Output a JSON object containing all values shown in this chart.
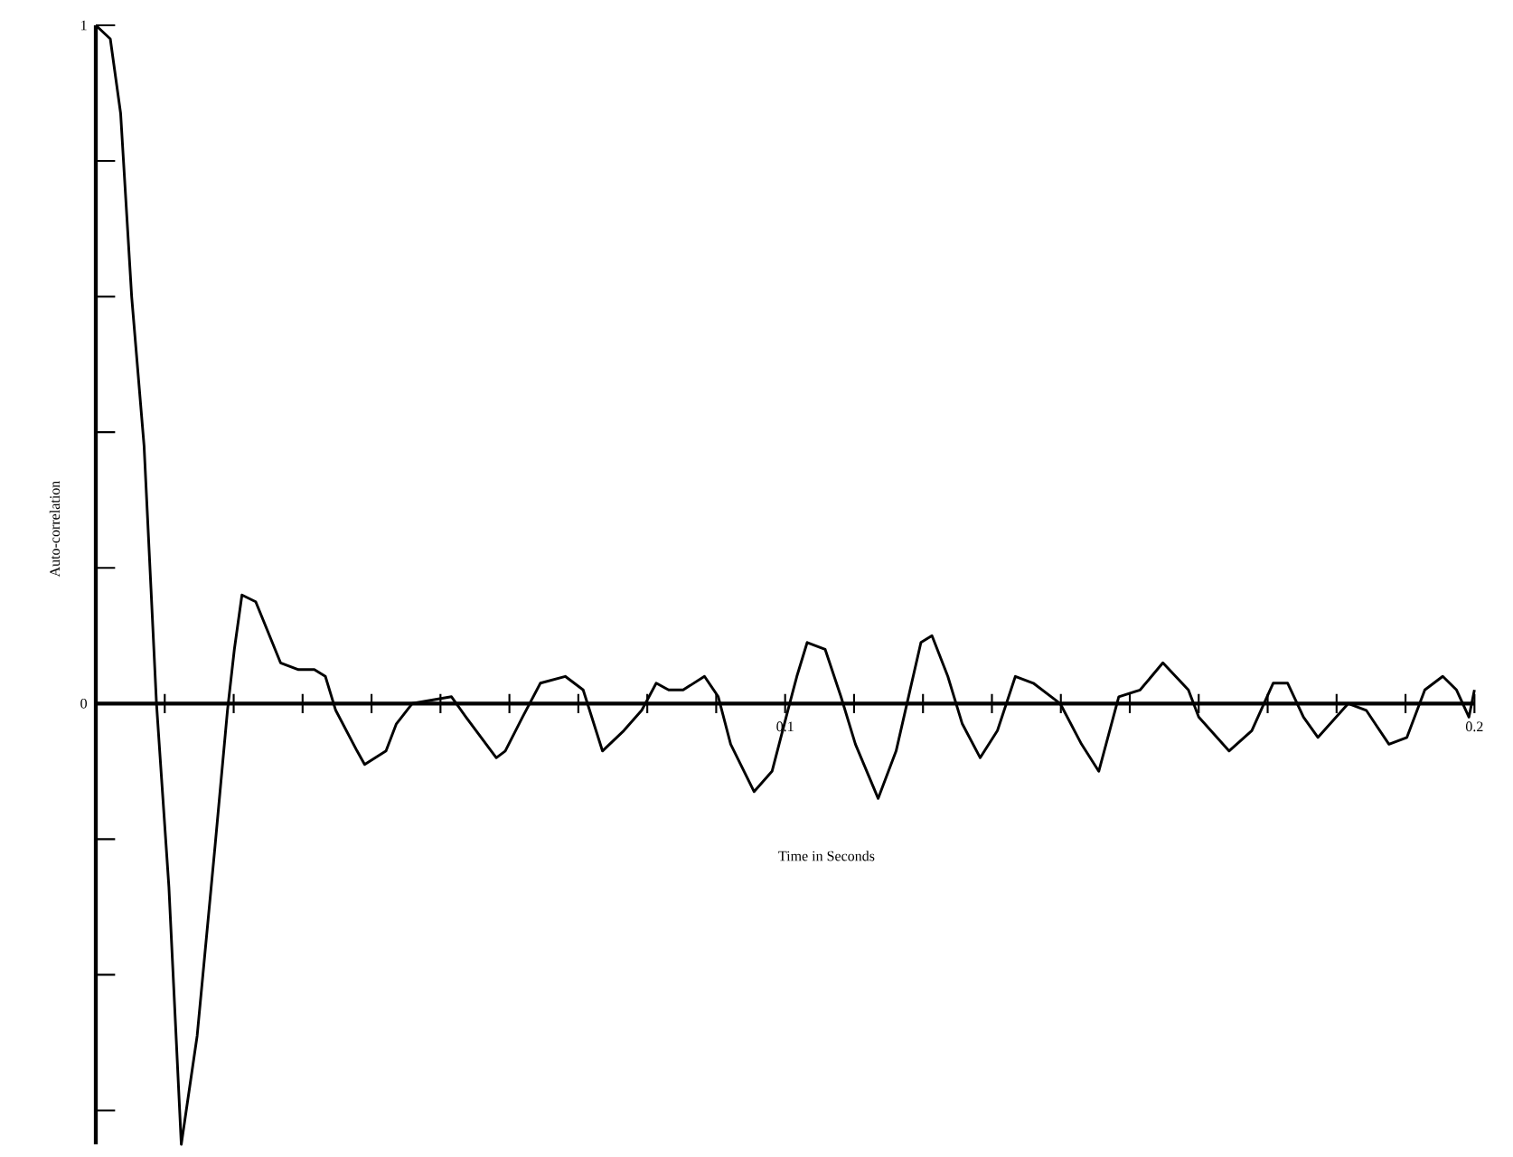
{
  "chart_data": {
    "type": "line",
    "xlabel": "Time in Seconds",
    "ylabel": "Auto-correlation",
    "color": "#000000",
    "x": [
      0,
      0.0021,
      0.0036,
      0.0052,
      0.007,
      0.008,
      0.0088,
      0.0106,
      0.0124,
      0.0147,
      0.0173,
      0.0191,
      0.0201,
      0.0212,
      0.0232,
      0.0248,
      0.0268,
      0.0294,
      0.0317,
      0.0333,
      0.0348,
      0.0379,
      0.039,
      0.0421,
      0.0436,
      0.0459,
      0.0516,
      0.0537,
      0.0581,
      0.0594,
      0.0619,
      0.0645,
      0.0681,
      0.0707,
      0.0735,
      0.0766,
      0.0792,
      0.0813,
      0.0831,
      0.0852,
      0.0883,
      0.0903,
      0.0921,
      0.0955,
      0.0981,
      0.1004,
      0.1017,
      0.1032,
      0.1058,
      0.1081,
      0.1102,
      0.1135,
      0.1161,
      0.1179,
      0.1197,
      0.1213,
      0.1236,
      0.1257,
      0.1283,
      0.1308,
      0.1334,
      0.136,
      0.1399,
      0.143,
      0.1455,
      0.1484,
      0.1515,
      0.1548,
      0.1585,
      0.16,
      0.1644,
      0.1677,
      0.1708,
      0.1729,
      0.1752,
      0.1773,
      0.1817,
      0.1843,
      0.1876,
      0.1902,
      0.1928,
      0.1954,
      0.1974,
      0.1992,
      0.2
    ],
    "values": [
      1.0,
      0.98,
      0.87,
      0.6,
      0.38,
      0.17,
      0.0,
      -0.27,
      -0.65,
      -0.49,
      -0.21,
      -0.01,
      0.08,
      0.16,
      0.15,
      0.11,
      0.06,
      0.05,
      0.05,
      0.04,
      -0.01,
      -0.07,
      -0.09,
      -0.07,
      -0.03,
      0.0,
      0.01,
      -0.02,
      -0.08,
      -0.07,
      -0.02,
      0.03,
      0.04,
      0.02,
      -0.07,
      -0.04,
      -0.01,
      0.03,
      0.02,
      0.02,
      0.04,
      0.01,
      -0.06,
      -0.13,
      -0.1,
      -0.01,
      0.04,
      0.09,
      0.08,
      0.01,
      -0.06,
      -0.14,
      -0.07,
      0.01,
      0.09,
      0.1,
      0.04,
      -0.03,
      -0.08,
      -0.04,
      0.04,
      0.03,
      0.0,
      -0.06,
      -0.1,
      0.01,
      0.02,
      0.06,
      0.02,
      -0.02,
      -0.07,
      -0.04,
      0.03,
      0.03,
      -0.02,
      -0.05,
      0.0,
      -0.01,
      -0.06,
      -0.05,
      0.02,
      0.04,
      0.02,
      -0.02,
      0.02
    ],
    "xlim": [
      0,
      0.2
    ],
    "ylim": [
      -0.65,
      1.0
    ],
    "xticks": [
      {
        "value": 0.01,
        "label": null
      },
      {
        "value": 0.02,
        "label": null
      },
      {
        "value": 0.03,
        "label": null
      },
      {
        "value": 0.04,
        "label": null
      },
      {
        "value": 0.05,
        "label": null
      },
      {
        "value": 0.06,
        "label": null
      },
      {
        "value": 0.07,
        "label": null
      },
      {
        "value": 0.08,
        "label": null
      },
      {
        "value": 0.09,
        "label": null
      },
      0.1,
      {
        "value": 0.11,
        "label": null
      },
      {
        "value": 0.12,
        "label": null
      },
      {
        "value": 0.13,
        "label": null
      },
      {
        "value": 0.14,
        "label": null
      },
      {
        "value": 0.15,
        "label": null
      },
      {
        "value": 0.16,
        "label": null
      },
      {
        "value": 0.17,
        "label": null
      },
      {
        "value": 0.18,
        "label": null
      },
      {
        "value": 0.19,
        "label": null
      },
      0.2
    ],
    "yticks": [
      {
        "value": -0.6,
        "label": null
      },
      {
        "value": -0.4,
        "label": null
      },
      {
        "value": -0.2,
        "label": null
      },
      0,
      {
        "value": 0.2,
        "label": null
      },
      {
        "value": 0.4,
        "label": null
      },
      {
        "value": 0.6,
        "label": null
      },
      {
        "value": 0.8,
        "label": null
      },
      1
    ]
  }
}
